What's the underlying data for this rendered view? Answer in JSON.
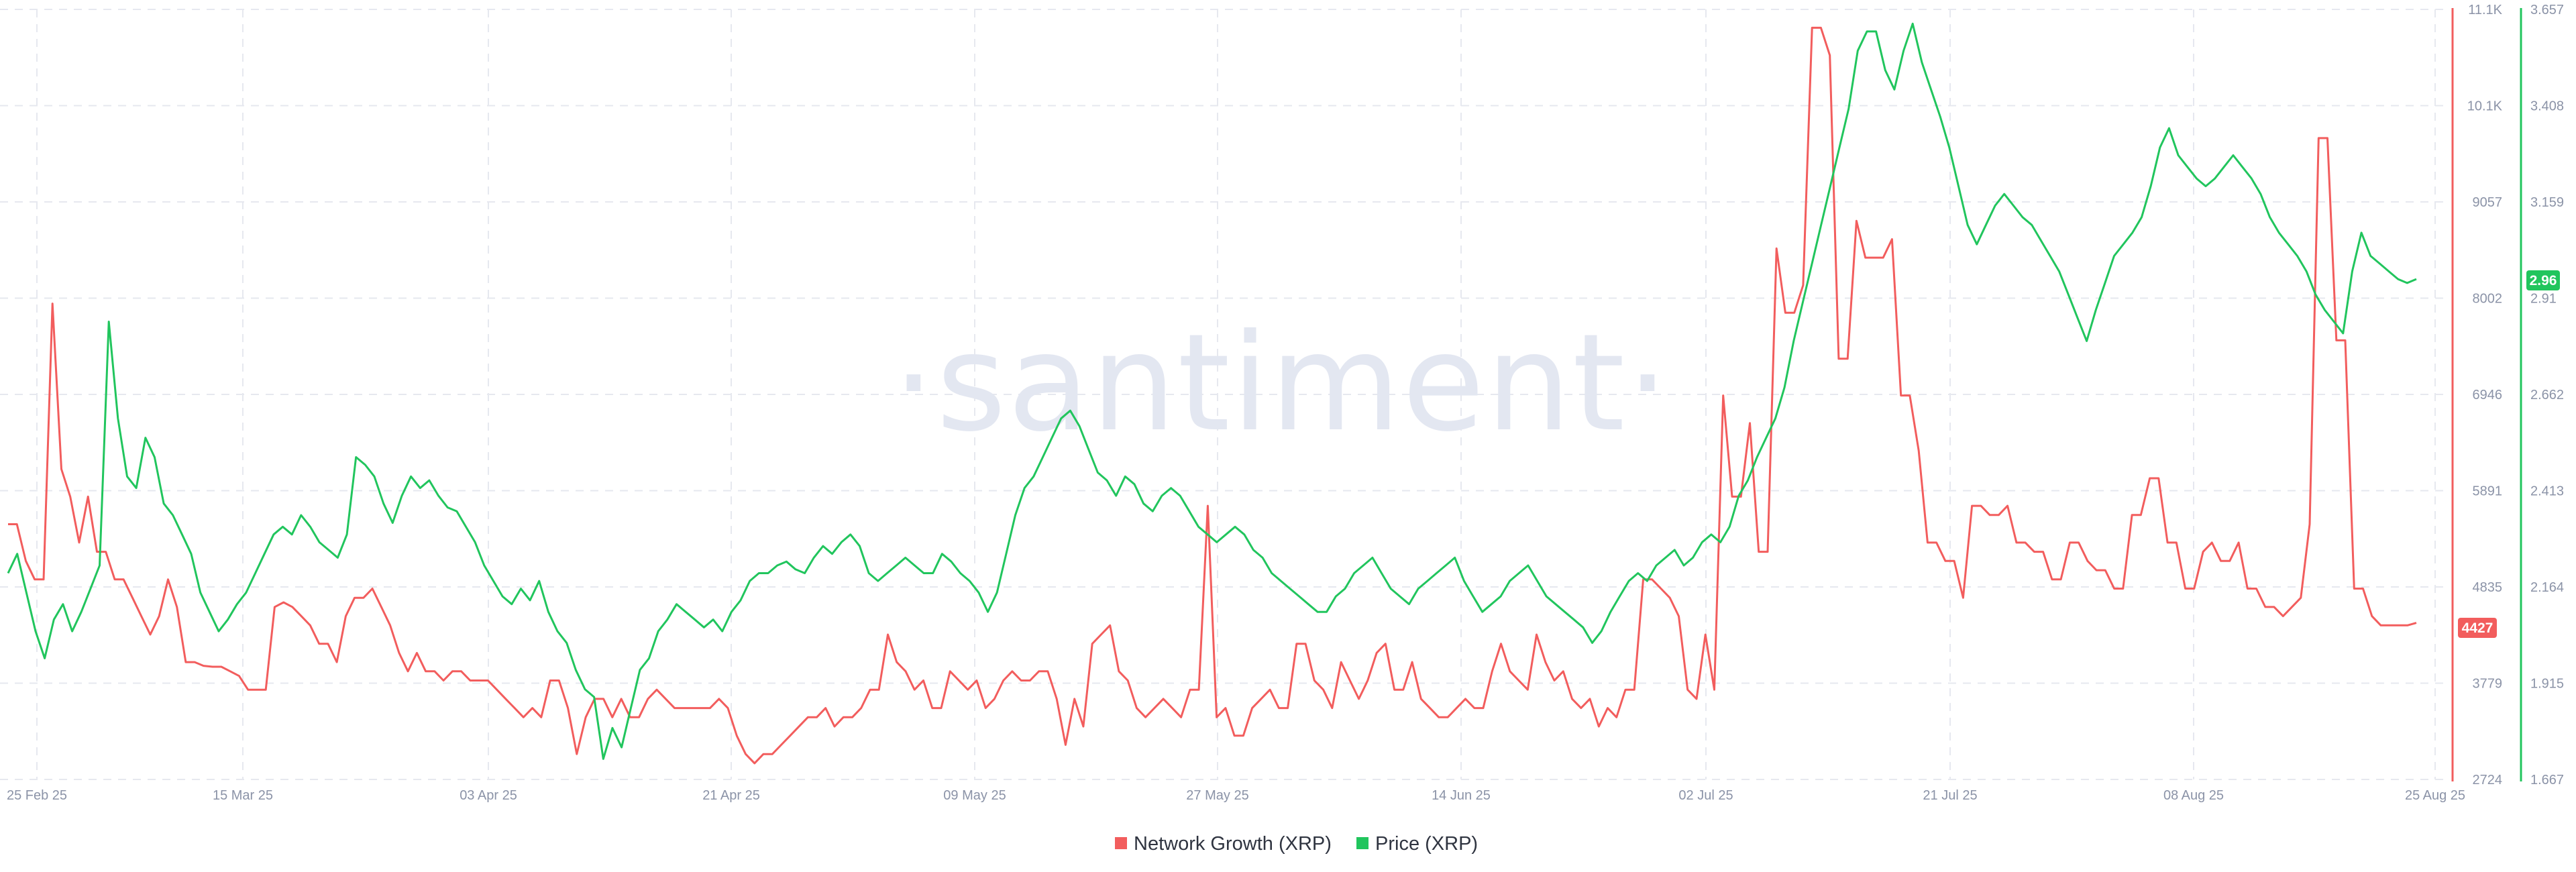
{
  "watermark": "·santiment·",
  "colors": {
    "network": "#f25d5d",
    "price": "#21c55d",
    "grid": "#e6e8ef",
    "tick": "#8b93a7"
  },
  "chart_data": {
    "type": "line",
    "x_ticks": [
      "25 Feb 25",
      "15 Mar 25",
      "03 Apr 25",
      "21 Apr 25",
      "09 May 25",
      "27 May 25",
      "14 Jun 25",
      "02 Jul 25",
      "21 Jul 25",
      "08 Aug 25",
      "25 Aug 25"
    ],
    "left_axis": {
      "series": "Network Growth (XRP)",
      "ticks": [
        "11.1K",
        "10.1K",
        "9057",
        "8002",
        "6946",
        "5891",
        "4835",
        "3779",
        "2724"
      ],
      "ylim": [
        2724,
        11100
      ]
    },
    "right_axis": {
      "series": "Price (XRP)",
      "ticks": [
        "3.657",
        "3.408",
        "3.159",
        "2.91",
        "2.662",
        "2.413",
        "2.164",
        "1.915",
        "1.667"
      ],
      "ylim": [
        1.667,
        3.657
      ]
    },
    "current_values": {
      "network": "4427",
      "price": "2.96"
    },
    "series": [
      {
        "name": "Network Growth (XRP)",
        "axis": "left",
        "values": [
          5500,
          5500,
          5100,
          4900,
          4900,
          7900,
          6100,
          5800,
          5300,
          5800,
          5200,
          5200,
          4900,
          4900,
          4700,
          4500,
          4300,
          4500,
          4900,
          4600,
          4000,
          4000,
          3960,
          3950,
          3950,
          3900,
          3850,
          3700,
          3700,
          3700,
          4600,
          4650,
          4600,
          4500,
          4400,
          4200,
          4200,
          4000,
          4500,
          4700,
          4700,
          4800,
          4600,
          4400,
          4100,
          3900,
          4100,
          3900,
          3900,
          3800,
          3900,
          3900,
          3800,
          3800,
          3800,
          3700,
          3600,
          3500,
          3400,
          3500,
          3400,
          3800,
          3800,
          3500,
          3000,
          3400,
          3600,
          3600,
          3400,
          3600,
          3400,
          3400,
          3600,
          3700,
          3600,
          3500,
          3500,
          3500,
          3500,
          3500,
          3600,
          3500,
          3200,
          3000,
          2900,
          3000,
          3000,
          3100,
          3200,
          3300,
          3400,
          3400,
          3500,
          3300,
          3400,
          3400,
          3500,
          3700,
          3700,
          4300,
          4000,
          3900,
          3700,
          3800,
          3500,
          3500,
          3900,
          3800,
          3700,
          3800,
          3500,
          3600,
          3800,
          3900,
          3800,
          3800,
          3900,
          3900,
          3600,
          3100,
          3600,
          3300,
          4200,
          4300,
          4400,
          3900,
          3800,
          3500,
          3400,
          3500,
          3600,
          3500,
          3400,
          3700,
          3700,
          5700,
          3400,
          3500,
          3200,
          3200,
          3500,
          3600,
          3700,
          3500,
          3500,
          4200,
          4200,
          3800,
          3700,
          3500,
          4000,
          3800,
          3600,
          3800,
          4100,
          4200,
          3700,
          3700,
          4000,
          3600,
          3500,
          3400,
          3400,
          3500,
          3600,
          3500,
          3500,
          3900,
          4200,
          3900,
          3800,
          3700,
          4300,
          4000,
          3800,
          3900,
          3600,
          3500,
          3600,
          3300,
          3500,
          3400,
          3700,
          3700,
          4900,
          4900,
          4800,
          4700,
          4500,
          3700,
          3600,
          4300,
          3700,
          6900,
          5800,
          5800,
          6600,
          5200,
          5200,
          8500,
          7800,
          7800,
          8100,
          10900,
          10900,
          10600,
          7300,
          7300,
          8800,
          8400,
          8400,
          8400,
          8600,
          6900,
          6900,
          6300,
          5300,
          5300,
          5100,
          5100,
          4700,
          5700,
          5700,
          5600,
          5600,
          5700,
          5300,
          5300,
          5200,
          5200,
          4900,
          4900,
          5300,
          5300,
          5100,
          5000,
          5000,
          4800,
          4800,
          5600,
          5600,
          6000,
          6000,
          5300,
          5300,
          4800,
          4800,
          5200,
          5300,
          5100,
          5100,
          5300,
          4800,
          4800,
          4600,
          4600,
          4500,
          4600,
          4700,
          5500,
          9700,
          9700,
          7500,
          7500,
          4800,
          4800,
          4500,
          4400,
          4400,
          4400,
          4400,
          4427
        ]
      },
      {
        "name": "Price (XRP)",
        "axis": "right",
        "values": [
          2.2,
          2.25,
          2.15,
          2.05,
          1.98,
          2.08,
          2.12,
          2.05,
          2.1,
          2.16,
          2.22,
          2.85,
          2.6,
          2.45,
          2.42,
          2.55,
          2.5,
          2.38,
          2.35,
          2.3,
          2.25,
          2.15,
          2.1,
          2.05,
          2.08,
          2.12,
          2.15,
          2.2,
          2.25,
          2.3,
          2.32,
          2.3,
          2.35,
          2.32,
          2.28,
          2.26,
          2.24,
          2.3,
          2.5,
          2.48,
          2.45,
          2.38,
          2.33,
          2.4,
          2.45,
          2.42,
          2.44,
          2.4,
          2.37,
          2.36,
          2.32,
          2.28,
          2.22,
          2.18,
          2.14,
          2.12,
          2.16,
          2.13,
          2.18,
          2.1,
          2.05,
          2.02,
          1.95,
          1.9,
          1.88,
          1.72,
          1.8,
          1.75,
          1.85,
          1.95,
          1.98,
          2.05,
          2.08,
          2.12,
          2.1,
          2.08,
          2.06,
          2.08,
          2.05,
          2.1,
          2.13,
          2.18,
          2.2,
          2.2,
          2.22,
          2.23,
          2.21,
          2.2,
          2.24,
          2.27,
          2.25,
          2.28,
          2.3,
          2.27,
          2.2,
          2.18,
          2.2,
          2.22,
          2.24,
          2.22,
          2.2,
          2.2,
          2.25,
          2.23,
          2.2,
          2.18,
          2.15,
          2.1,
          2.15,
          2.25,
          2.35,
          2.42,
          2.45,
          2.5,
          2.55,
          2.6,
          2.62,
          2.58,
          2.52,
          2.46,
          2.44,
          2.4,
          2.45,
          2.43,
          2.38,
          2.36,
          2.4,
          2.42,
          2.4,
          2.36,
          2.32,
          2.3,
          2.28,
          2.3,
          2.32,
          2.3,
          2.26,
          2.24,
          2.2,
          2.18,
          2.16,
          2.14,
          2.12,
          2.1,
          2.1,
          2.14,
          2.16,
          2.2,
          2.22,
          2.24,
          2.2,
          2.16,
          2.14,
          2.12,
          2.16,
          2.18,
          2.2,
          2.22,
          2.24,
          2.18,
          2.14,
          2.1,
          2.12,
          2.14,
          2.18,
          2.2,
          2.22,
          2.18,
          2.14,
          2.12,
          2.1,
          2.08,
          2.06,
          2.02,
          2.05,
          2.1,
          2.14,
          2.18,
          2.2,
          2.18,
          2.22,
          2.24,
          2.26,
          2.22,
          2.24,
          2.28,
          2.3,
          2.28,
          2.32,
          2.4,
          2.44,
          2.5,
          2.55,
          2.6,
          2.68,
          2.8,
          2.9,
          3.0,
          3.1,
          3.2,
          3.3,
          3.4,
          3.55,
          3.6,
          3.6,
          3.5,
          3.45,
          3.55,
          3.62,
          3.52,
          3.45,
          3.38,
          3.3,
          3.2,
          3.1,
          3.05,
          3.1,
          3.15,
          3.18,
          3.15,
          3.12,
          3.1,
          3.06,
          3.02,
          2.98,
          2.92,
          2.86,
          2.8,
          2.88,
          2.95,
          3.02,
          3.05,
          3.08,
          3.12,
          3.2,
          3.3,
          3.35,
          3.28,
          3.25,
          3.22,
          3.2,
          3.22,
          3.25,
          3.28,
          3.25,
          3.22,
          3.18,
          3.12,
          3.08,
          3.05,
          3.02,
          2.98,
          2.92,
          2.88,
          2.85,
          2.82,
          2.98,
          3.08,
          3.02,
          3.0,
          2.98,
          2.96,
          2.95,
          2.96
        ]
      }
    ],
    "legend": [
      {
        "label": "Network Growth (XRP)",
        "color": "#f25d5d"
      },
      {
        "label": "Price (XRP)",
        "color": "#21c55d"
      }
    ]
  }
}
